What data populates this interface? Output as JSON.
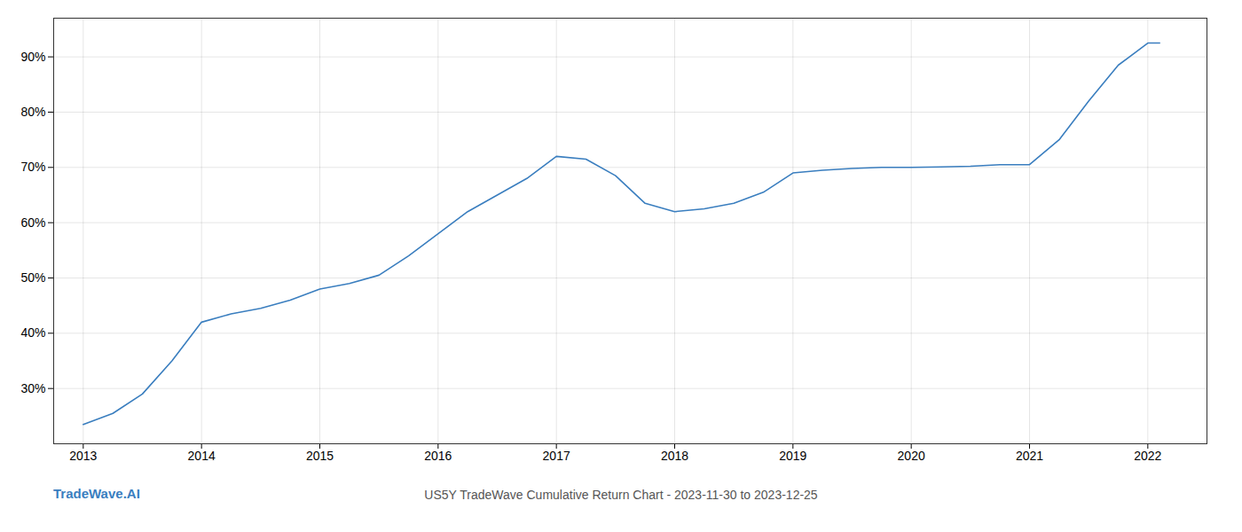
{
  "chart_data": {
    "type": "line",
    "title": "US5Y TradeWave Cumulative Return Chart - 2023-11-30 to 2023-12-25",
    "annotations": [
      {
        "text": "TradeWave.AI",
        "color": "#3a7ebf"
      }
    ],
    "x": [
      2013,
      2013.25,
      2013.5,
      2013.75,
      2014,
      2014.25,
      2014.5,
      2014.75,
      2015,
      2015.25,
      2015.5,
      2015.75,
      2016,
      2016.25,
      2016.5,
      2016.75,
      2017,
      2017.25,
      2017.5,
      2017.75,
      2018,
      2018.25,
      2018.5,
      2018.75,
      2019,
      2019.25,
      2019.5,
      2019.75,
      2020,
      2020.25,
      2020.5,
      2020.75,
      2021,
      2021.25,
      2021.5,
      2021.75,
      2022,
      2022.1
    ],
    "values": [
      23.5,
      25.5,
      29,
      35,
      42,
      43.5,
      44.5,
      46,
      48,
      49,
      50.5,
      54,
      58,
      62,
      65,
      68,
      72,
      71.5,
      68.5,
      63.5,
      62,
      62.5,
      63.5,
      65.5,
      69,
      69.5,
      69.8,
      70,
      70,
      70.1,
      70.2,
      70.5,
      70.5,
      75,
      82,
      88.5,
      92.5,
      92.5
    ],
    "color": "#3a7ebf",
    "xlim": [
      2012.75,
      2022.5
    ],
    "xticks": [
      2013,
      2014,
      2015,
      2016,
      2017,
      2018,
      2019,
      2020,
      2021,
      2022
    ],
    "ylim": [
      20,
      97
    ],
    "yticks": [
      {
        "value": 30,
        "label": "30%"
      },
      {
        "value": 40,
        "label": "40%"
      },
      {
        "value": 50,
        "label": "50%"
      },
      {
        "value": 60,
        "label": "60%"
      },
      {
        "value": 70,
        "label": "70%"
      },
      {
        "value": 80,
        "label": "80%"
      },
      {
        "value": 90,
        "label": "90%"
      }
    ],
    "grid": true
  }
}
